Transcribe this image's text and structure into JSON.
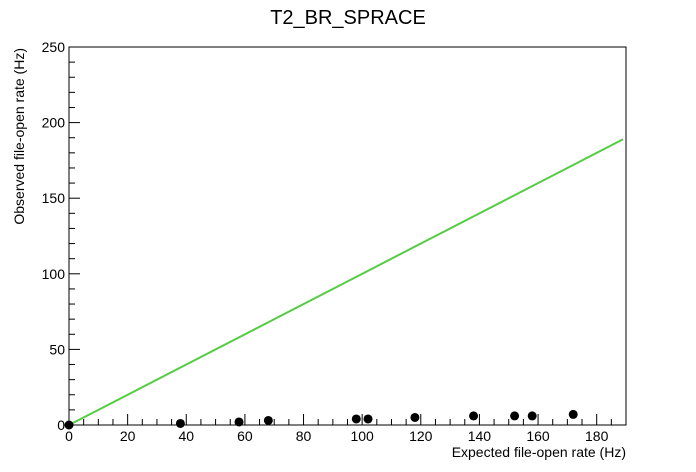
{
  "chart_data": {
    "type": "scatter",
    "title": "T2_BR_SPRACE",
    "xlabel": "Expected file-open rate (Hz)",
    "ylabel": "Observed file-open rate (Hz)",
    "xlim": [
      0,
      190
    ],
    "ylim": [
      0,
      250
    ],
    "x_ticks": [
      0,
      20,
      40,
      60,
      80,
      100,
      120,
      140,
      160,
      180
    ],
    "y_ticks": [
      0,
      50,
      100,
      150,
      200,
      250
    ],
    "grid": false,
    "legend": "none",
    "series": [
      {
        "points": [
          {
            "x": 0,
            "y": 0
          },
          {
            "x": 38,
            "y": 1
          },
          {
            "x": 58,
            "y": 2
          },
          {
            "x": 68,
            "y": 3
          },
          {
            "x": 98,
            "y": 4
          },
          {
            "x": 102,
            "y": 4
          },
          {
            "x": 118,
            "y": 5
          },
          {
            "x": 138,
            "y": 6
          },
          {
            "x": 152,
            "y": 6
          },
          {
            "x": 158,
            "y": 6
          },
          {
            "x": 172,
            "y": 7
          }
        ],
        "color": "#000000"
      }
    ],
    "reference_line": {
      "x": [
        0,
        189
      ],
      "y": [
        0,
        189
      ],
      "color": "#55cc44"
    }
  }
}
